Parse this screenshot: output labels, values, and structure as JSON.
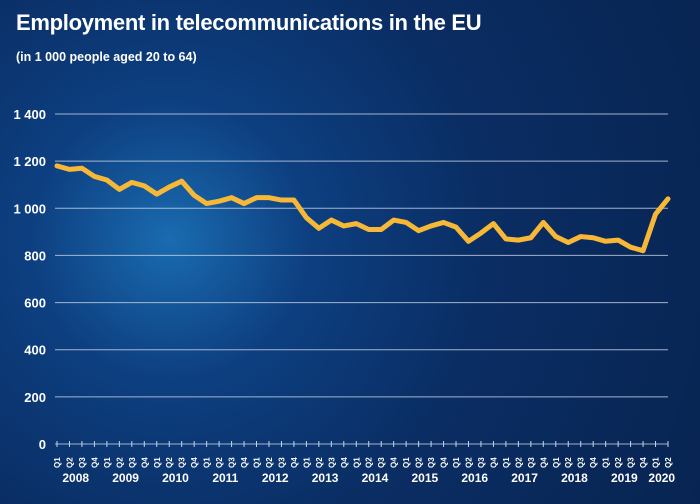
{
  "title": "Employment in telecommunications in the EU",
  "subtitle": "(in 1 000 people aged 20 to 64)",
  "chart_data": {
    "type": "line",
    "title": "Employment in telecommunications in the EU",
    "subtitle": "(in 1 000 people aged 20 to 64)",
    "ylim": [
      0,
      1400
    ],
    "yticks": [
      0,
      200,
      400,
      600,
      800,
      1000,
      1200,
      1400
    ],
    "ytick_labels": [
      "0",
      "200",
      "400",
      "600",
      "800",
      "1 000",
      "1 200",
      "1 400"
    ],
    "grid": true,
    "quarters": [
      "Q1",
      "Q2",
      "Q3",
      "Q4"
    ],
    "years": [
      "2008",
      "2009",
      "2010",
      "2011",
      "2012",
      "2013",
      "2014",
      "2015",
      "2016",
      "2017",
      "2018",
      "2019",
      "2020"
    ],
    "values": [
      1180,
      1165,
      1170,
      1135,
      1120,
      1080,
      1110,
      1095,
      1060,
      1090,
      1115,
      1055,
      1020,
      1030,
      1045,
      1020,
      1045,
      1045,
      1035,
      1035,
      960,
      915,
      950,
      925,
      935,
      910,
      910,
      950,
      940,
      905,
      925,
      940,
      920,
      860,
      895,
      935,
      870,
      865,
      875,
      940,
      880,
      855,
      880,
      875,
      860,
      865,
      835,
      820,
      975,
      1040
    ],
    "line_color": "#f6b836"
  }
}
